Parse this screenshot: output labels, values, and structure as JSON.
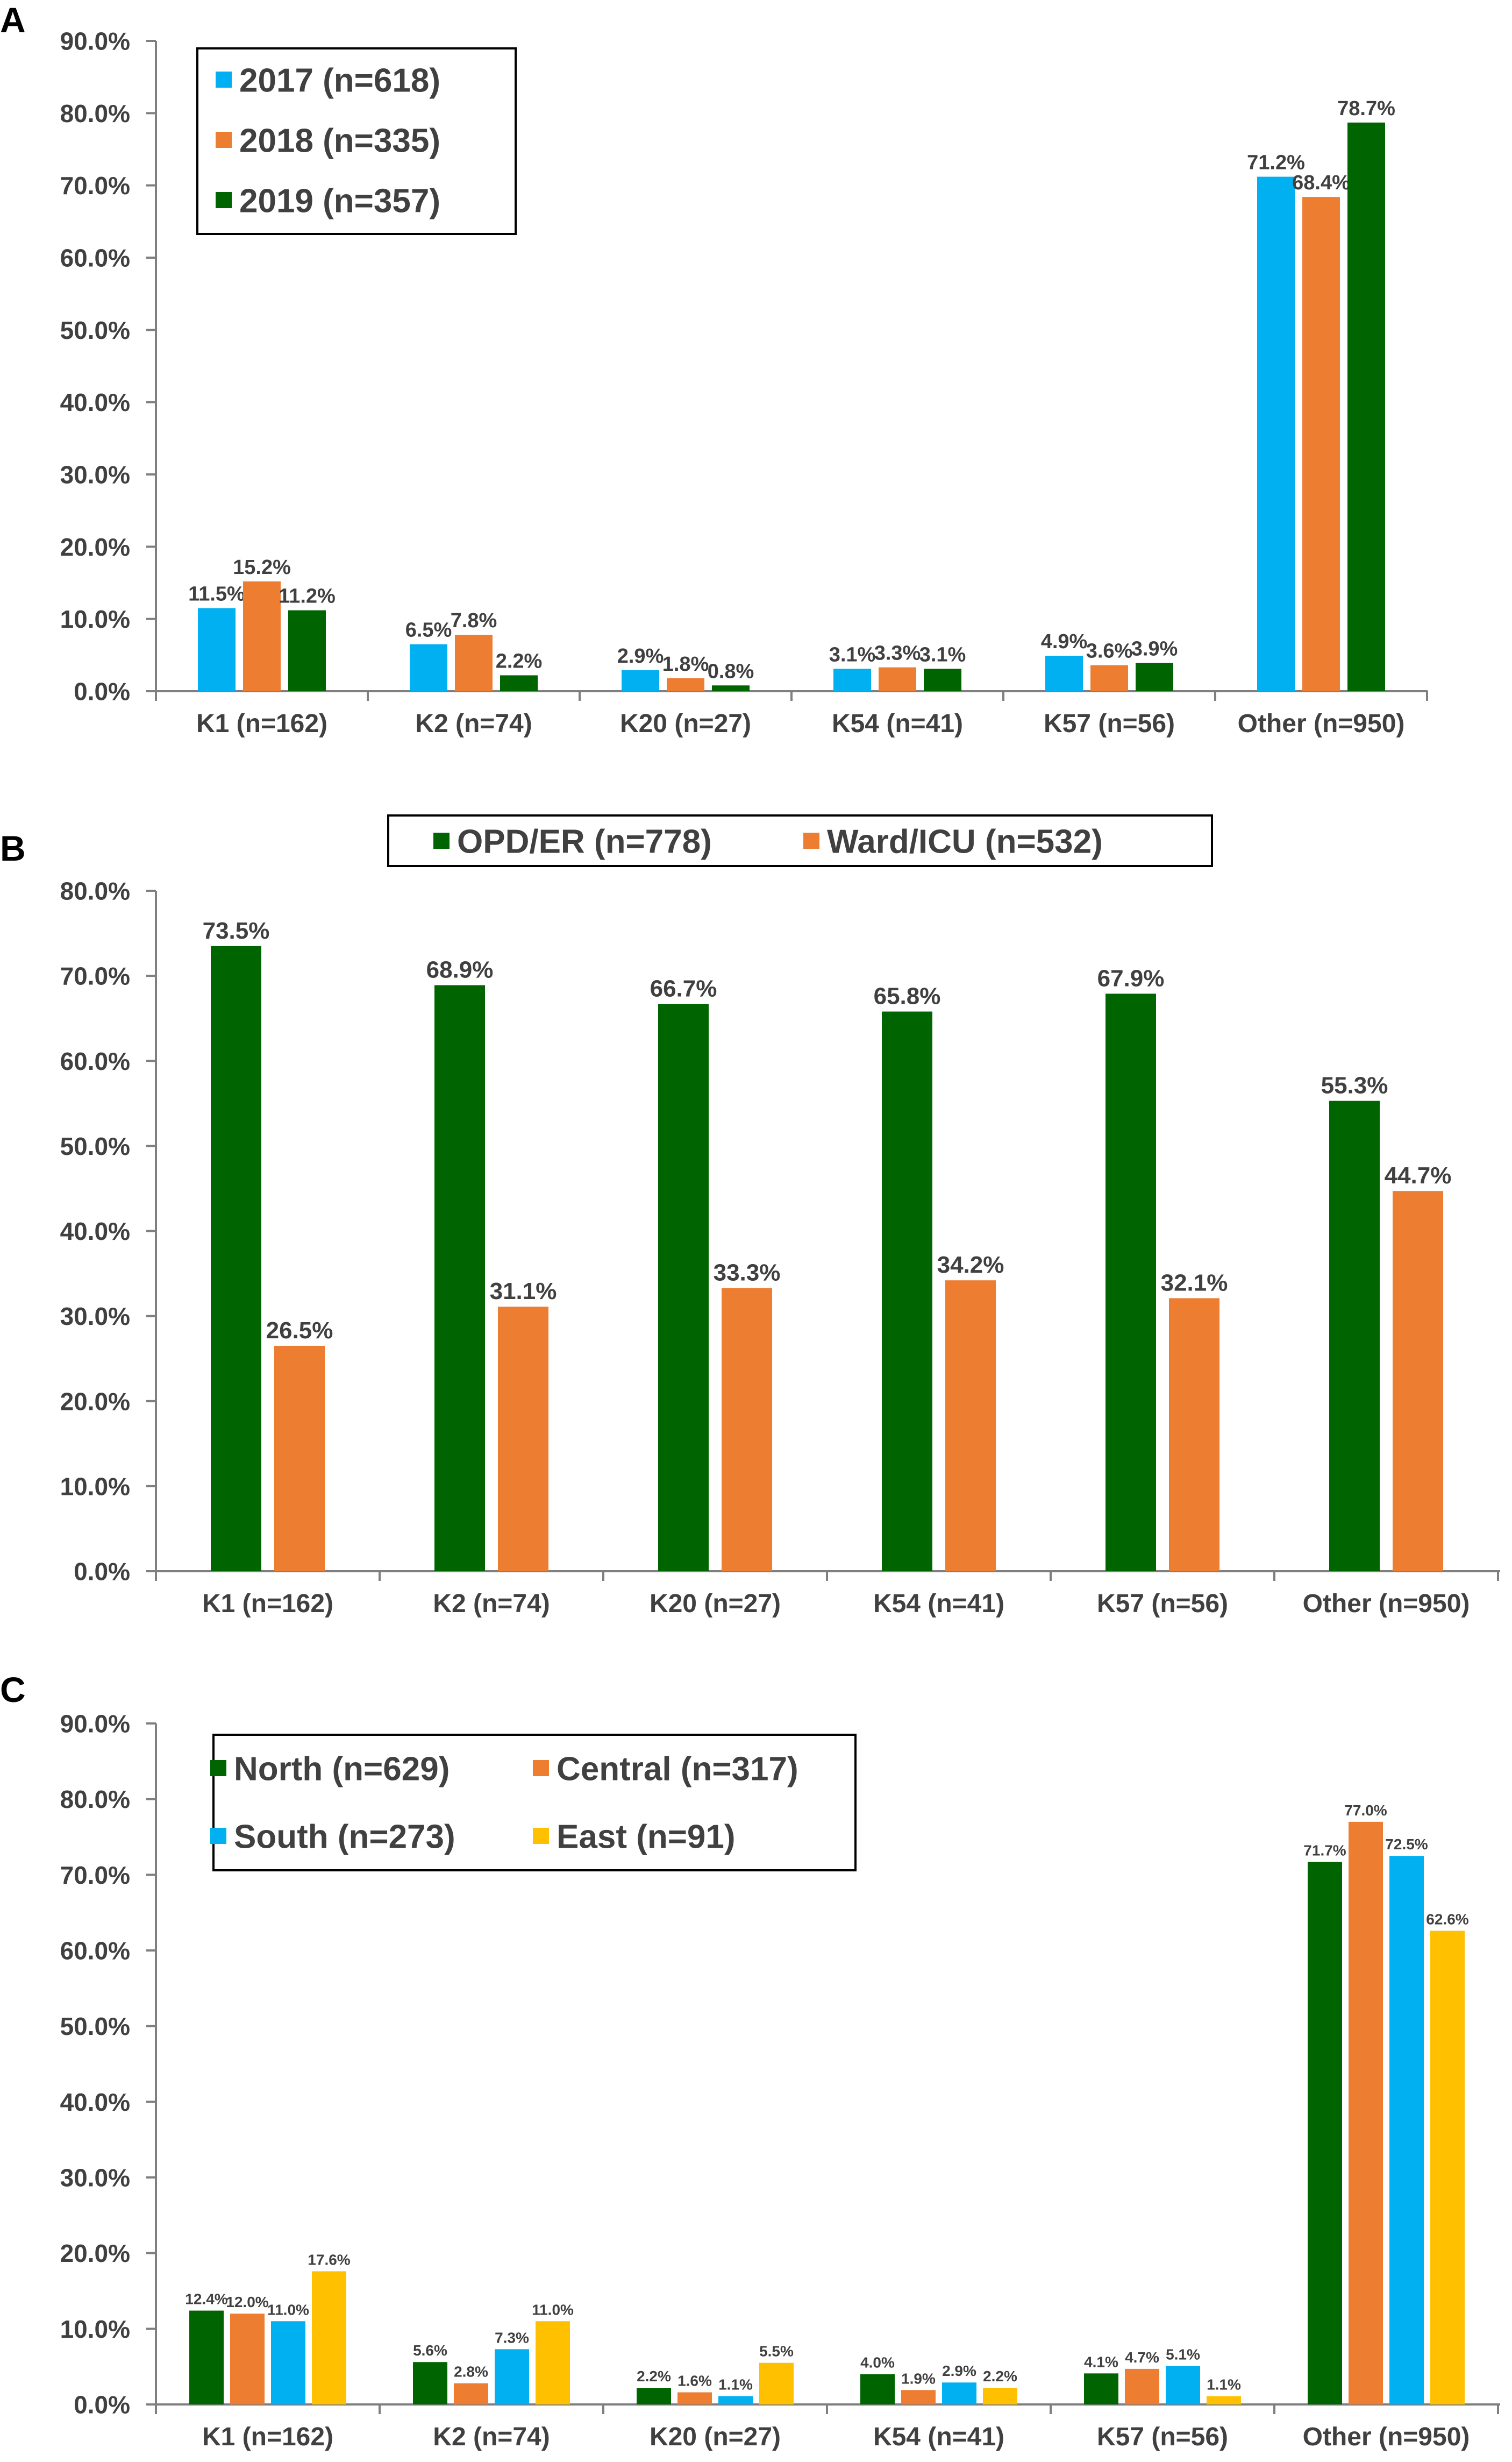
{
  "chart_data": [
    {
      "panel": "A",
      "type": "bar",
      "categories": [
        "K1 (n=162)",
        "K2 (n=74)",
        "K20 (n=27)",
        "K54 (n=41)",
        "K57 (n=56)",
        "Other (n=950)"
      ],
      "series": [
        {
          "name": "2017 (n=618)",
          "color": "#00B0F0",
          "values": [
            11.5,
            6.5,
            2.9,
            3.1,
            4.9,
            71.2
          ],
          "labels": [
            "11.5%",
            "6.5%",
            "2.9%",
            "3.1%",
            "4.9%",
            "71.2%"
          ]
        },
        {
          "name": "2018 (n=335)",
          "color": "#ED7D31",
          "values": [
            15.2,
            7.8,
            1.8,
            3.3,
            3.6,
            68.4
          ],
          "labels": [
            "15.2%",
            "7.8%",
            "1.8%",
            "3.3%",
            "3.6%",
            "68.4%"
          ]
        },
        {
          "name": "2019 (n=357)",
          "color": "#006400",
          "values": [
            11.2,
            2.2,
            0.8,
            3.1,
            3.9,
            78.7
          ],
          "labels": [
            "11.2%",
            "2.2%",
            "0.8%",
            "3.1%",
            "3.9%",
            "78.7%"
          ]
        }
      ],
      "ylim": [
        0,
        90
      ],
      "yticks": [
        "0.0%",
        "10.0%",
        "20.0%",
        "30.0%",
        "40.0%",
        "50.0%",
        "60.0%",
        "70.0%",
        "80.0%",
        "90.0%"
      ],
      "legend": "top-left"
    },
    {
      "panel": "B",
      "type": "bar",
      "categories": [
        "K1 (n=162)",
        "K2 (n=74)",
        "K20 (n=27)",
        "K54 (n=41)",
        "K57 (n=56)",
        "Other (n=950)"
      ],
      "series": [
        {
          "name": "OPD/ER (n=778)",
          "color": "#006400",
          "values": [
            73.5,
            68.9,
            66.7,
            65.8,
            67.9,
            55.3
          ],
          "labels": [
            "73.5%",
            "68.9%",
            "66.7%",
            "65.8%",
            "67.9%",
            "55.3%"
          ]
        },
        {
          "name": "Ward/ICU (n=532)",
          "color": "#ED7D31",
          "values": [
            26.5,
            31.1,
            33.3,
            34.2,
            32.1,
            44.7
          ],
          "labels": [
            "26.5%",
            "31.1%",
            "33.3%",
            "34.2%",
            "32.1%",
            "44.7%"
          ]
        }
      ],
      "ylim": [
        0,
        80
      ],
      "yticks": [
        "0.0%",
        "10.0%",
        "20.0%",
        "30.0%",
        "40.0%",
        "50.0%",
        "60.0%",
        "70.0%",
        "80.0%"
      ],
      "legend": "top-center"
    },
    {
      "panel": "C",
      "type": "bar",
      "categories": [
        "K1 (n=162)",
        "K2 (n=74)",
        "K20 (n=27)",
        "K54 (n=41)",
        "K57 (n=56)",
        "Other (n=950)"
      ],
      "series": [
        {
          "name": "North (n=629)",
          "color": "#006400",
          "values": [
            12.4,
            5.6,
            2.2,
            4.0,
            4.1,
            71.7
          ],
          "labels": [
            "12.4%",
            "5.6%",
            "2.2%",
            "4.0%",
            "4.1%",
            "71.7%"
          ]
        },
        {
          "name": "Central (n=317)",
          "color": "#ED7D31",
          "values": [
            12.0,
            2.8,
            1.6,
            1.9,
            4.7,
            77.0
          ],
          "labels": [
            "12.0%",
            "2.8%",
            "1.6%",
            "1.9%",
            "4.7%",
            "77.0%"
          ]
        },
        {
          "name": "South (n=273)",
          "color": "#00B0F0",
          "values": [
            11.0,
            7.3,
            1.1,
            2.9,
            5.1,
            72.5
          ],
          "labels": [
            "11.0%",
            "7.3%",
            "1.1%",
            "2.9%",
            "5.1%",
            "72.5%"
          ]
        },
        {
          "name": "East (n=91)",
          "color": "#FFC000",
          "values": [
            17.6,
            11.0,
            5.5,
            2.2,
            1.1,
            62.6
          ],
          "labels": [
            "17.6%",
            "11.0%",
            "5.5%",
            "2.2%",
            "1.1%",
            "62.6%"
          ]
        }
      ],
      "ylim": [
        0,
        90
      ],
      "yticks": [
        "0.0%",
        "10.0%",
        "20.0%",
        "30.0%",
        "40.0%",
        "50.0%",
        "60.0%",
        "70.0%",
        "80.0%",
        "90.0%"
      ],
      "legend": "top-left"
    }
  ]
}
